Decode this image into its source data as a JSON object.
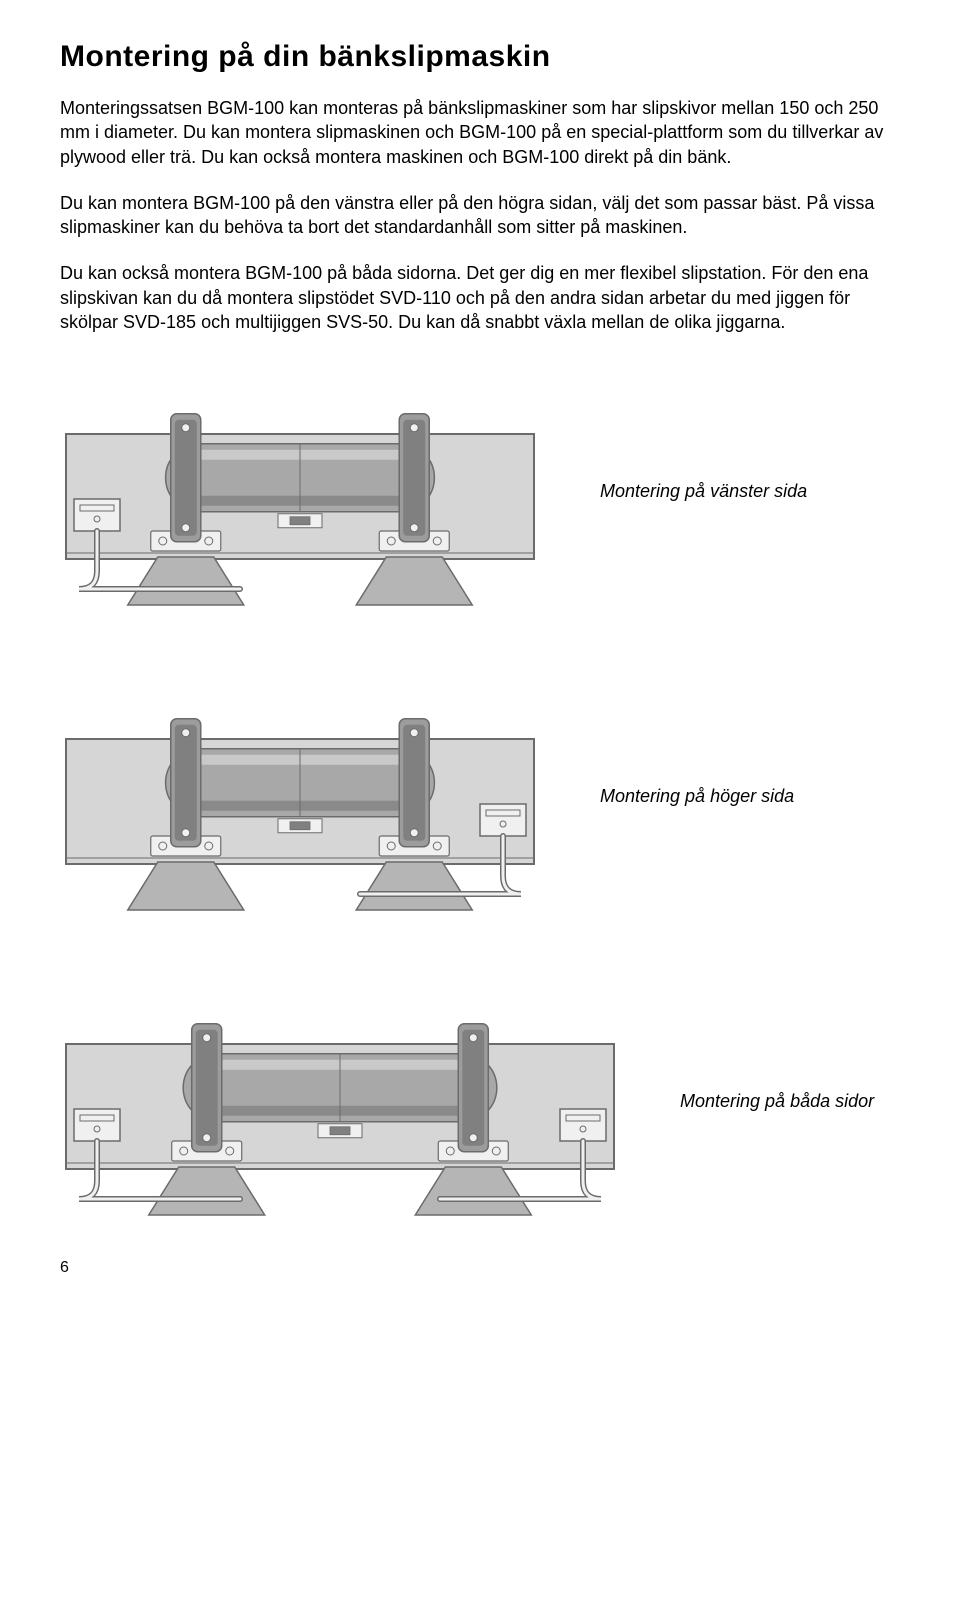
{
  "heading": "Montering på din bänkslipmaskin",
  "paragraphs": {
    "p1": "Monteringssatsen BGM-100 kan monteras på bänkslipmaskiner som har slipskivor mellan 150 och 250 mm i diameter. Du kan montera slipmaskinen och BGM-100 på en special-plattform som du tillverkar av plywood eller trä. Du kan också montera maskinen och BGM-100 direkt på din bänk.",
    "p2": "Du kan montera BGM-100 på den vänstra eller på den högra sidan, välj det som passar bäst. På vissa slipmaskiner kan du behöva ta bort det standardanhåll som sitter på maskinen.",
    "p3": "Du kan också montera BGM-100 på båda sidorna. Det ger dig en mer flexibel slipstation. För den ena slipskivan kan du då montera slipstödet SVD-110 och på den andra sidan arbetar du med jiggen för skölpar SVD-185 och multijiggen SVS-50. Du kan då snabbt växla mellan de olika jiggarna."
  },
  "captions": {
    "left": "Montering på vänster sida",
    "right": "Montering på höger sida",
    "both": "Montering på båda sidor"
  },
  "pageNumber": "6",
  "colors": {
    "diagramBg": "#d6d6d6",
    "diagramStroke": "#6b6b6b",
    "motorBody": "#a8a8a8",
    "motorLight": "#c9c9c9",
    "motorDark": "#8a8a8a",
    "guard": "#9c9c9c",
    "guardDark": "#808080",
    "bracket": "#f0f0f0",
    "rest": "#b5b5b5"
  },
  "figureWidthNarrow": 480,
  "figureWidthWide": 560,
  "figureHeight": 250
}
